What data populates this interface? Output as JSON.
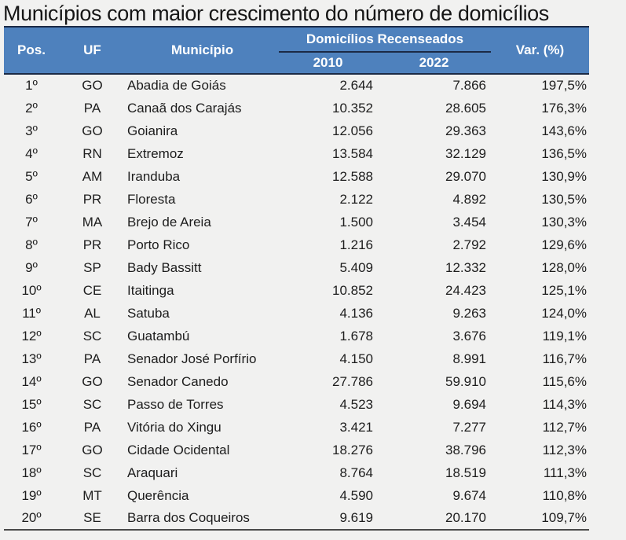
{
  "title": "Municípios com maior crescimento do número de domicílios",
  "colors": {
    "header_bg": "#4e81bd",
    "header_text": "#ffffff",
    "frame_line": "#1b2a45",
    "bottom_line": "#4a4a4a",
    "page_bg": "#f1f1f0",
    "body_text": "#1d1d1d"
  },
  "table": {
    "headers": {
      "pos": "Pos.",
      "uf": "UF",
      "municipio": "Município",
      "group": "Domicílios Recenseados",
      "y2010": "2010",
      "y2022": "2022",
      "var": "Var. (%)"
    },
    "rows": [
      {
        "pos": "1º",
        "uf": "GO",
        "municipio": "Abadia de Goiás",
        "d2010": "2.644",
        "d2022": "7.866",
        "var": "197,5%"
      },
      {
        "pos": "2º",
        "uf": "PA",
        "municipio": "Canaã dos Carajás",
        "d2010": "10.352",
        "d2022": "28.605",
        "var": "176,3%"
      },
      {
        "pos": "3º",
        "uf": "GO",
        "municipio": "Goianira",
        "d2010": "12.056",
        "d2022": "29.363",
        "var": "143,6%"
      },
      {
        "pos": "4º",
        "uf": "RN",
        "municipio": "Extremoz",
        "d2010": "13.584",
        "d2022": "32.129",
        "var": "136,5%"
      },
      {
        "pos": "5º",
        "uf": "AM",
        "municipio": "Iranduba",
        "d2010": "12.588",
        "d2022": "29.070",
        "var": "130,9%"
      },
      {
        "pos": "6º",
        "uf": "PR",
        "municipio": "Floresta",
        "d2010": "2.122",
        "d2022": "4.892",
        "var": "130,5%"
      },
      {
        "pos": "7º",
        "uf": "MA",
        "municipio": "Brejo de Areia",
        "d2010": "1.500",
        "d2022": "3.454",
        "var": "130,3%"
      },
      {
        "pos": "8º",
        "uf": "PR",
        "municipio": "Porto Rico",
        "d2010": "1.216",
        "d2022": "2.792",
        "var": "129,6%"
      },
      {
        "pos": "9º",
        "uf": "SP",
        "municipio": "Bady Bassitt",
        "d2010": "5.409",
        "d2022": "12.332",
        "var": "128,0%"
      },
      {
        "pos": "10º",
        "uf": "CE",
        "municipio": "Itaitinga",
        "d2010": "10.852",
        "d2022": "24.423",
        "var": "125,1%"
      },
      {
        "pos": "11º",
        "uf": "AL",
        "municipio": "Satuba",
        "d2010": "4.136",
        "d2022": "9.263",
        "var": "124,0%"
      },
      {
        "pos": "12º",
        "uf": "SC",
        "municipio": "Guatambú",
        "d2010": "1.678",
        "d2022": "3.676",
        "var": "119,1%"
      },
      {
        "pos": "13º",
        "uf": "PA",
        "municipio": "Senador José Porfírio",
        "d2010": "4.150",
        "d2022": "8.991",
        "var": "116,7%"
      },
      {
        "pos": "14º",
        "uf": "GO",
        "municipio": "Senador Canedo",
        "d2010": "27.786",
        "d2022": "59.910",
        "var": "115,6%"
      },
      {
        "pos": "15º",
        "uf": "SC",
        "municipio": "Passo de Torres",
        "d2010": "4.523",
        "d2022": "9.694",
        "var": "114,3%"
      },
      {
        "pos": "16º",
        "uf": "PA",
        "municipio": "Vitória do Xingu",
        "d2010": "3.421",
        "d2022": "7.277",
        "var": "112,7%"
      },
      {
        "pos": "17º",
        "uf": "GO",
        "municipio": "Cidade Ocidental",
        "d2010": "18.276",
        "d2022": "38.796",
        "var": "112,3%"
      },
      {
        "pos": "18º",
        "uf": "SC",
        "municipio": "Araquari",
        "d2010": "8.764",
        "d2022": "18.519",
        "var": "111,3%"
      },
      {
        "pos": "19º",
        "uf": "MT",
        "municipio": "Querência",
        "d2010": "4.590",
        "d2022": "9.674",
        "var": "110,8%"
      },
      {
        "pos": "20º",
        "uf": "SE",
        "municipio": "Barra dos Coqueiros",
        "d2010": "9.619",
        "d2022": "20.170",
        "var": "109,7%"
      }
    ]
  },
  "chart_data": {
    "type": "table",
    "title": "Municípios com maior crescimento do número de domicílios",
    "group_header": "Domicílios Recenseados",
    "columns": [
      "Pos.",
      "UF",
      "Município",
      "2010",
      "2022",
      "Var. (%)"
    ],
    "rows": [
      [
        "1º",
        "GO",
        "Abadia de Goiás",
        2644,
        7866,
        197.5
      ],
      [
        "2º",
        "PA",
        "Canaã dos Carajás",
        10352,
        28605,
        176.3
      ],
      [
        "3º",
        "GO",
        "Goianira",
        12056,
        29363,
        143.6
      ],
      [
        "4º",
        "RN",
        "Extremoz",
        13584,
        32129,
        136.5
      ],
      [
        "5º",
        "AM",
        "Iranduba",
        12588,
        29070,
        130.9
      ],
      [
        "6º",
        "PR",
        "Floresta",
        2122,
        4892,
        130.5
      ],
      [
        "7º",
        "MA",
        "Brejo de Areia",
        1500,
        3454,
        130.3
      ],
      [
        "8º",
        "PR",
        "Porto Rico",
        1216,
        2792,
        129.6
      ],
      [
        "9º",
        "SP",
        "Bady Bassitt",
        5409,
        12332,
        128.0
      ],
      [
        "10º",
        "CE",
        "Itaitinga",
        10852,
        24423,
        125.1
      ],
      [
        "11º",
        "AL",
        "Satuba",
        4136,
        9263,
        124.0
      ],
      [
        "12º",
        "SC",
        "Guatambú",
        1678,
        3676,
        119.1
      ],
      [
        "13º",
        "PA",
        "Senador José Porfírio",
        4150,
        8991,
        116.7
      ],
      [
        "14º",
        "GO",
        "Senador Canedo",
        27786,
        59910,
        115.6
      ],
      [
        "15º",
        "SC",
        "Passo de Torres",
        4523,
        9694,
        114.3
      ],
      [
        "16º",
        "PA",
        "Vitória do Xingu",
        3421,
        7277,
        112.7
      ],
      [
        "17º",
        "GO",
        "Cidade Ocidental",
        18276,
        38796,
        112.3
      ],
      [
        "18º",
        "SC",
        "Araquari",
        8764,
        18519,
        111.3
      ],
      [
        "19º",
        "MT",
        "Querência",
        4590,
        9674,
        110.8
      ],
      [
        "20º",
        "SE",
        "Barra dos Coqueiros",
        9619,
        20170,
        109.7
      ]
    ],
    "notes": "Values shown with Brazilian number formatting (. thousands, , decimal); Var. (%) is percent growth 2010→2022"
  }
}
